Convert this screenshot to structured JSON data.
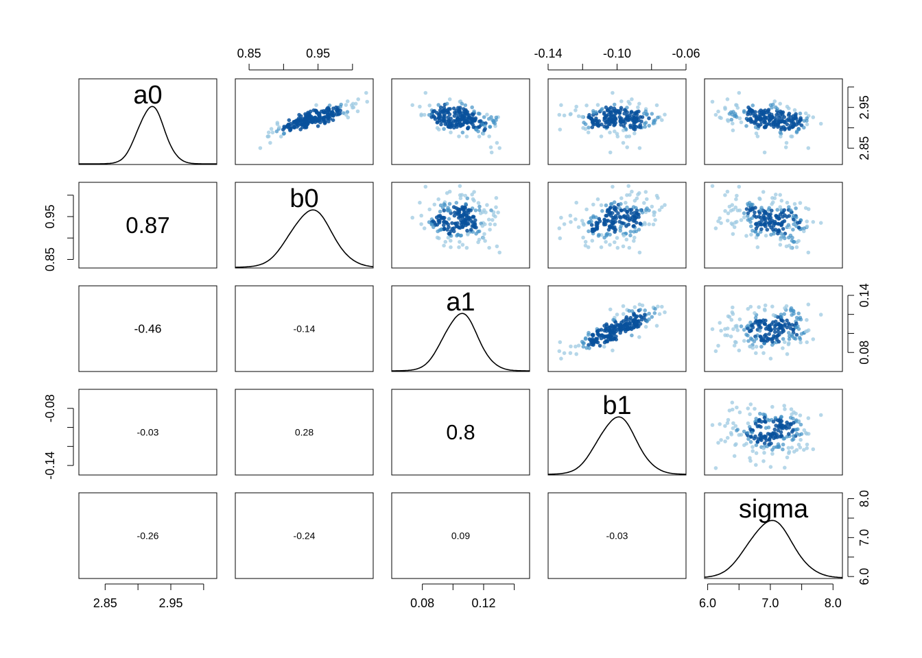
{
  "chart_data": {
    "type": "scatter",
    "variables": [
      "a0",
      "b0",
      "a1",
      "b1",
      "sigma"
    ],
    "correlations": [
      {
        "row": "b0",
        "col": "a0",
        "value": 0.87,
        "label": "0.87"
      },
      {
        "row": "a1",
        "col": "a0",
        "value": -0.46,
        "label": "-0.46"
      },
      {
        "row": "a1",
        "col": "b0",
        "value": -0.14,
        "label": "-0.14"
      },
      {
        "row": "b1",
        "col": "a0",
        "value": -0.03,
        "label": "-0.03"
      },
      {
        "row": "b1",
        "col": "b0",
        "value": 0.28,
        "label": "0.28"
      },
      {
        "row": "b1",
        "col": "a1",
        "value": 0.8,
        "label": "0.8"
      },
      {
        "row": "sigma",
        "col": "a0",
        "value": -0.26,
        "label": "-0.26"
      },
      {
        "row": "sigma",
        "col": "b0",
        "value": -0.24,
        "label": "-0.24"
      },
      {
        "row": "sigma",
        "col": "a1",
        "value": 0.09,
        "label": "0.09"
      },
      {
        "row": "sigma",
        "col": "b1",
        "value": -0.03,
        "label": "-0.03"
      }
    ],
    "marginals": {
      "a0": {
        "mean": 2.92,
        "sd": 0.02,
        "range": [
          2.81,
          3.02
        ]
      },
      "b0": {
        "mean": 0.94,
        "sd": 0.03,
        "range": [
          0.83,
          1.03
        ]
      },
      "a1": {
        "mean": 0.105,
        "sd": 0.011,
        "range": [
          0.06,
          0.15
        ]
      },
      "b1": {
        "mean": -0.1,
        "sd": 0.011,
        "range": [
          -0.14,
          -0.06
        ]
      },
      "sigma": {
        "mean": 7.0,
        "sd": 0.35,
        "range": [
          5.95,
          8.15
        ]
      }
    },
    "axes": [
      {
        "variable": "a0",
        "side": "bottom",
        "ticks": [
          2.85,
          2.9,
          2.95,
          3.0
        ],
        "labels": [
          "2.85",
          "2.95"
        ],
        "lim": [
          2.81,
          3.02
        ]
      },
      {
        "variable": "b0",
        "side": "top",
        "ticks": [
          0.85,
          0.9,
          0.95,
          1.0
        ],
        "labels": [
          "0.85",
          "0.95"
        ],
        "lim": [
          0.83,
          1.03
        ]
      },
      {
        "variable": "a1",
        "side": "bottom",
        "ticks": [
          0.08,
          0.1,
          0.12,
          0.14
        ],
        "labels": [
          "0.08",
          "0.12"
        ],
        "lim": [
          0.06,
          0.15
        ]
      },
      {
        "variable": "b1",
        "side": "top",
        "ticks": [
          -0.14,
          -0.12,
          -0.1,
          -0.08,
          -0.06
        ],
        "labels": [
          "-0.14",
          "-0.10",
          "-0.06"
        ],
        "lim": [
          -0.14,
          -0.06
        ]
      },
      {
        "variable": "sigma",
        "side": "bottom",
        "ticks": [
          6.0,
          6.5,
          7.0,
          7.5,
          8.0
        ],
        "labels": [
          "6.0",
          "7.0",
          "8.0"
        ],
        "lim": [
          5.95,
          8.15
        ]
      },
      {
        "variable": "a0",
        "side": "right",
        "ticks": [
          2.85,
          2.9,
          2.95,
          3.0
        ],
        "labels": [
          "2.85",
          "2.95"
        ],
        "lim": [
          2.81,
          3.02
        ]
      },
      {
        "variable": "b0",
        "side": "left",
        "ticks": [
          0.85,
          0.9,
          0.95,
          1.0
        ],
        "labels": [
          "0.85",
          "0.95"
        ],
        "lim": [
          0.83,
          1.03
        ]
      },
      {
        "variable": "a1",
        "side": "right",
        "ticks": [
          0.08,
          0.1,
          0.12,
          0.14
        ],
        "labels": [
          "0.08",
          "0.14"
        ],
        "lim": [
          0.06,
          0.15
        ]
      },
      {
        "variable": "b1",
        "side": "left",
        "ticks": [
          -0.14,
          -0.12,
          -0.1,
          -0.08
        ],
        "labels": [
          "-0.14",
          "-0.08"
        ],
        "lim": [
          -0.15,
          -0.06
        ]
      },
      {
        "variable": "sigma",
        "side": "right",
        "ticks": [
          6.0,
          6.5,
          7.0,
          7.5,
          8.0
        ],
        "labels": [
          "6.0",
          "7.0",
          "8.0"
        ],
        "lim": [
          5.95,
          8.15
        ]
      }
    ],
    "colors": {
      "point_light": "#9ecae1",
      "point_mid": "#4292c6",
      "point_dark": "#08519c",
      "line": "#000000"
    },
    "grid": false,
    "legend": "none"
  }
}
